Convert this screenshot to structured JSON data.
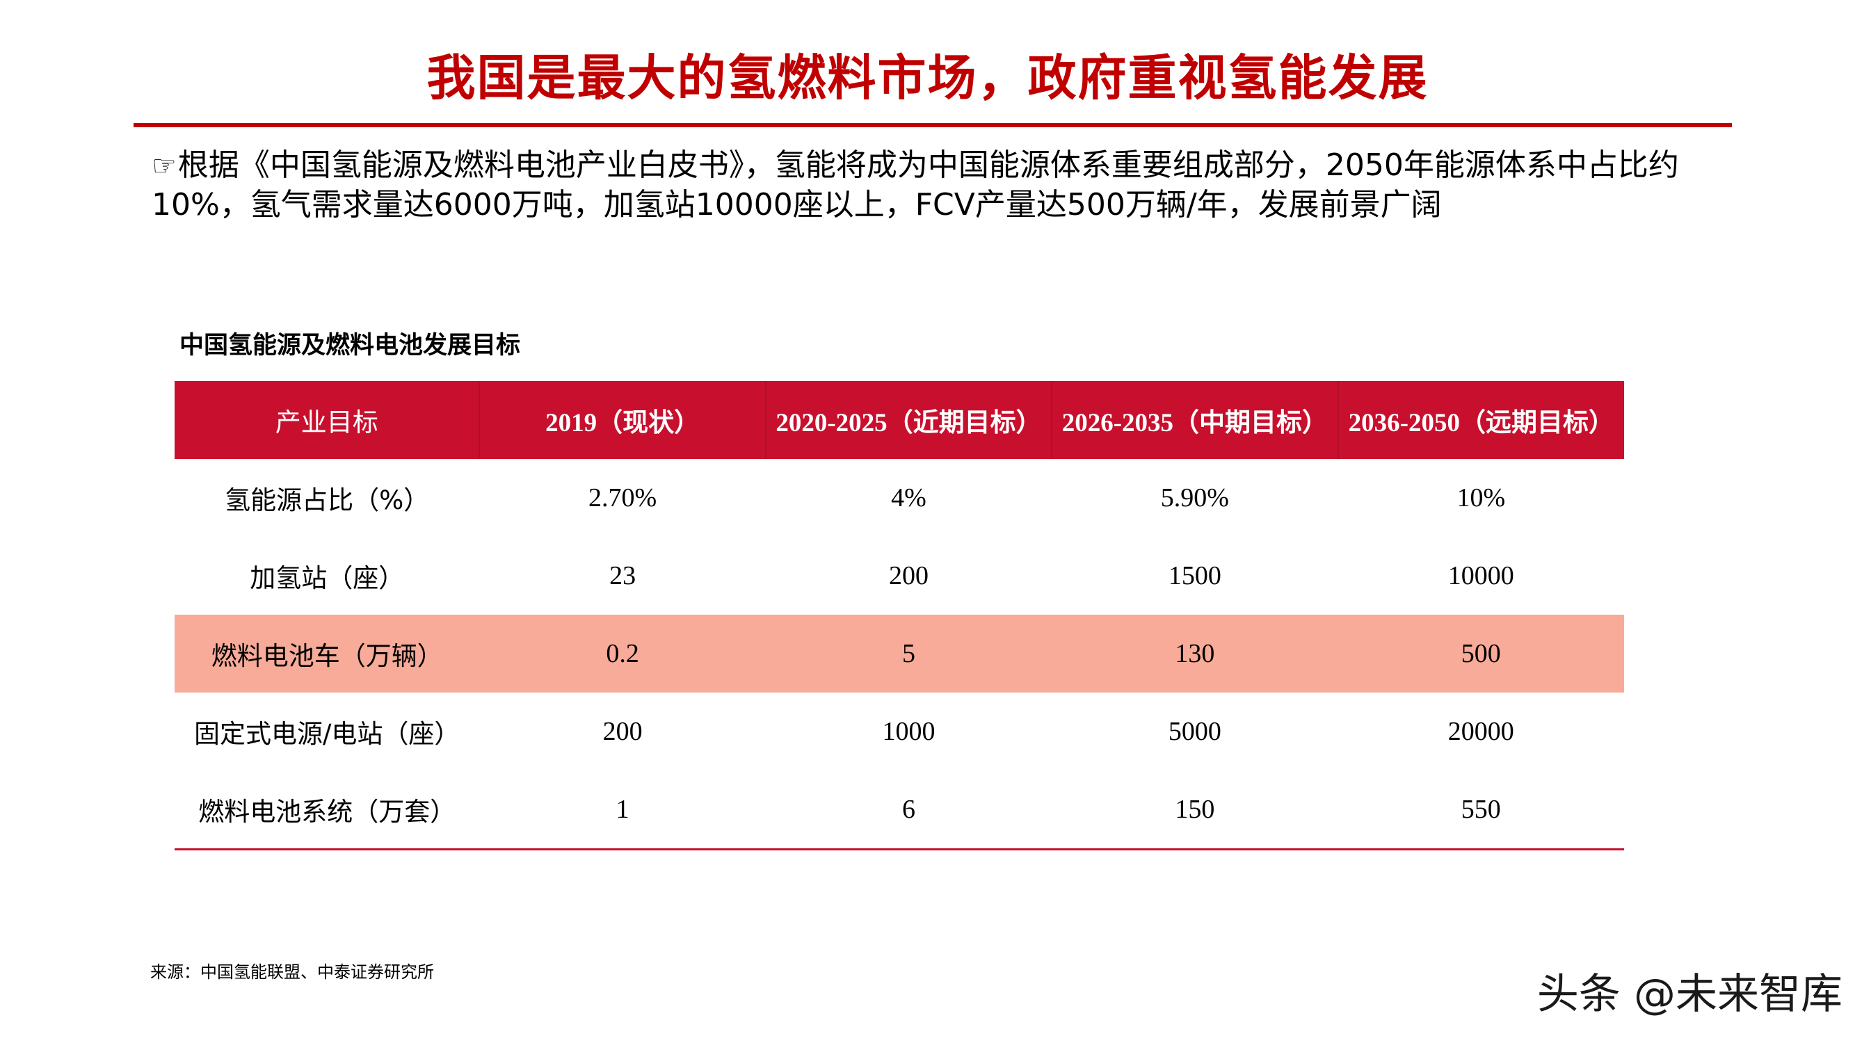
{
  "title": "我国是最大的氢燃料市场，政府重视氢能发展",
  "intro": {
    "icon": "pointing-hand-icon",
    "text": "根据《中国氢能源及燃料电池产业白皮书》，氢能将成为中国能源体系重要组成部分，2050年能源体系中占比约10%，氢气需求量达6000万吨，加氢站10000座以上，FCV产量达500万辆/年，发展前景广阔"
  },
  "table": {
    "caption": "中国氢能源及燃料电池发展目标",
    "headers": [
      "产业目标",
      "2019（现状）",
      "2020-2025（近期目标）",
      "2026-2035（中期目标）",
      "2036-2050（远期目标）"
    ],
    "rows": [
      [
        "氢能源占比（%）",
        "2.70%",
        "4%",
        "5.90%",
        "10%"
      ],
      [
        "加氢站（座）",
        "23",
        "200",
        "1500",
        "10000"
      ],
      [
        "燃料电池车（万辆）",
        "0.2",
        "5",
        "130",
        "500"
      ],
      [
        "固定式电源/电站（座）",
        "200",
        "1000",
        "5000",
        "20000"
      ],
      [
        "燃料电池系统（万套）",
        "1",
        "6",
        "150",
        "550"
      ]
    ],
    "highlight_row_color": "#f8ab98",
    "header_color": "#c8102e"
  },
  "source": "来源：中国氢能联盟、中泰证券研究所",
  "watermark": "头条 @未来智库",
  "colors": {
    "title": "#c00000",
    "rule": "#c00000"
  }
}
